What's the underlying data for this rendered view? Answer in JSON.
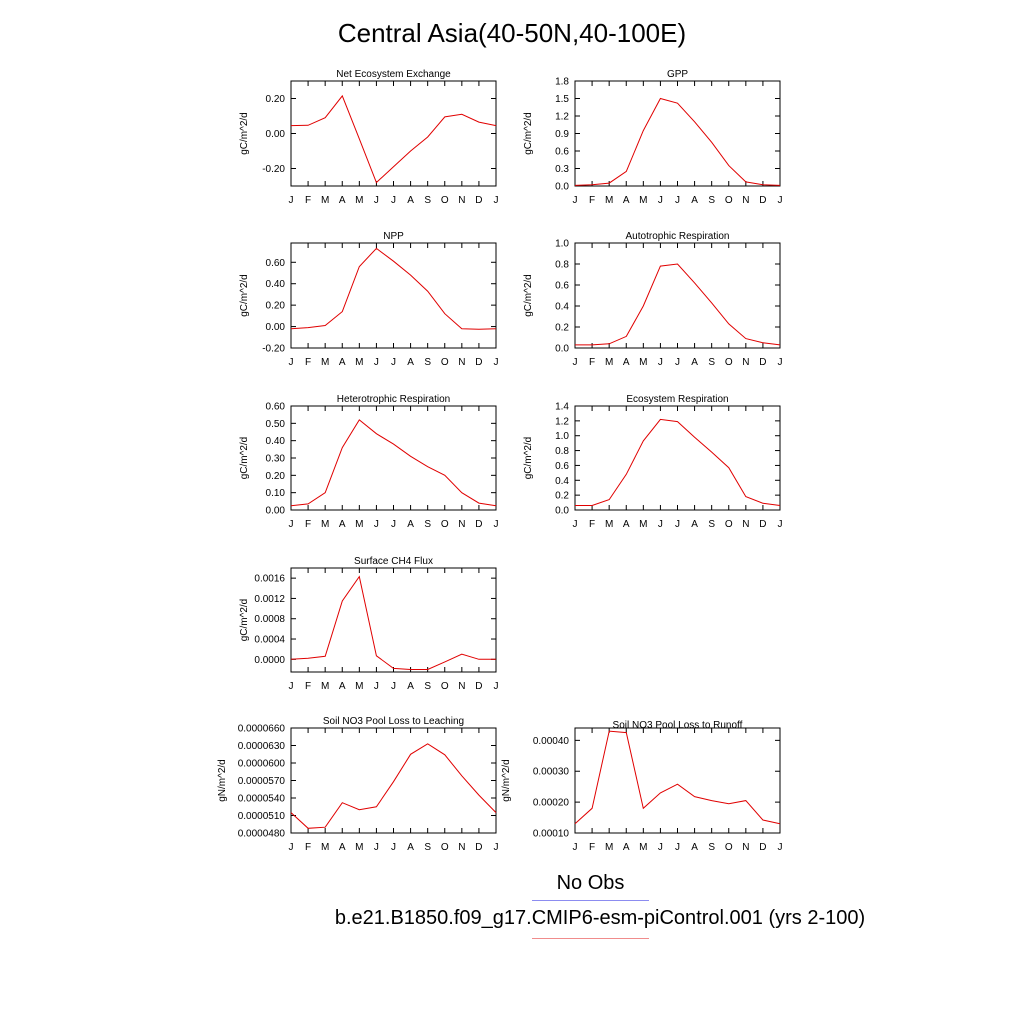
{
  "title": "Central Asia(40-50N,40-100E)",
  "legend": {
    "obs_label": "No Obs",
    "obs_color": "#8c8cf0",
    "model_label": "b.e21.B1850.f09_g17.CMIP6-esm-piControl.001 (yrs 2-100)",
    "model_color": "#e00000"
  },
  "chart_data": [
    {
      "type": "line",
      "title": "Net Ecosystem Exchange",
      "ylabel": "gC/m^2/d",
      "categories": [
        "J",
        "F",
        "M",
        "A",
        "M",
        "J",
        "J",
        "A",
        "S",
        "O",
        "N",
        "D",
        "J"
      ],
      "yticks": [
        "-0.20",
        "0.00",
        "0.20"
      ],
      "ytick_values": [
        -0.2,
        0.0,
        0.2
      ],
      "ylim": [
        -0.3,
        0.3
      ],
      "series": [
        {
          "values": [
            0.045,
            0.047,
            0.09,
            0.215,
            -0.03,
            -0.28,
            -0.19,
            -0.1,
            -0.02,
            0.095,
            0.11,
            0.065,
            0.045
          ]
        }
      ]
    },
    {
      "type": "line",
      "title": "GPP",
      "ylabel": "gC/m^2/d",
      "categories": [
        "J",
        "F",
        "M",
        "A",
        "M",
        "J",
        "J",
        "A",
        "S",
        "O",
        "N",
        "D",
        "J"
      ],
      "yticks": [
        "0.0",
        "0.3",
        "0.6",
        "0.9",
        "1.2",
        "1.5",
        "1.8"
      ],
      "ytick_values": [
        0,
        0.3,
        0.6,
        0.9,
        1.2,
        1.5,
        1.8
      ],
      "ylim": [
        0,
        1.8
      ],
      "series": [
        {
          "values": [
            0.01,
            0.02,
            0.05,
            0.25,
            0.95,
            1.5,
            1.42,
            1.1,
            0.75,
            0.35,
            0.07,
            0.02,
            0.01
          ]
        }
      ]
    },
    {
      "type": "line",
      "title": "NPP",
      "ylabel": "gC/m^2/d",
      "categories": [
        "J",
        "F",
        "M",
        "A",
        "M",
        "J",
        "J",
        "A",
        "S",
        "O",
        "N",
        "D",
        "J"
      ],
      "yticks": [
        "-0.20",
        "0.00",
        "0.20",
        "0.40",
        "0.60"
      ],
      "ytick_values": [
        -0.2,
        0,
        0.2,
        0.4,
        0.6
      ],
      "ylim": [
        -0.2,
        0.78
      ],
      "series": [
        {
          "values": [
            -0.02,
            -0.01,
            0.01,
            0.14,
            0.56,
            0.73,
            0.61,
            0.48,
            0.33,
            0.12,
            -0.02,
            -0.025,
            -0.02
          ]
        }
      ]
    },
    {
      "type": "line",
      "title": "Autotrophic Respiration",
      "ylabel": "gC/m^2/d",
      "categories": [
        "J",
        "F",
        "M",
        "A",
        "M",
        "J",
        "J",
        "A",
        "S",
        "O",
        "N",
        "D",
        "J"
      ],
      "yticks": [
        "0.0",
        "0.2",
        "0.4",
        "0.6",
        "0.8",
        "1.0"
      ],
      "ytick_values": [
        0,
        0.2,
        0.4,
        0.6,
        0.8,
        1.0
      ],
      "ylim": [
        0,
        1.0
      ],
      "series": [
        {
          "values": [
            0.03,
            0.03,
            0.04,
            0.11,
            0.4,
            0.78,
            0.8,
            0.62,
            0.43,
            0.23,
            0.09,
            0.05,
            0.03
          ]
        }
      ]
    },
    {
      "type": "line",
      "title": "Heterotrophic Respiration",
      "ylabel": "gC/m^2/d",
      "categories": [
        "J",
        "F",
        "M",
        "A",
        "M",
        "J",
        "J",
        "A",
        "S",
        "O",
        "N",
        "D",
        "J"
      ],
      "yticks": [
        "0.00",
        "0.10",
        "0.20",
        "0.30",
        "0.40",
        "0.50",
        "0.60"
      ],
      "ytick_values": [
        0,
        0.1,
        0.2,
        0.3,
        0.4,
        0.5,
        0.6
      ],
      "ylim": [
        0,
        0.6
      ],
      "series": [
        {
          "values": [
            0.025,
            0.035,
            0.1,
            0.36,
            0.52,
            0.44,
            0.38,
            0.31,
            0.25,
            0.2,
            0.1,
            0.04,
            0.025
          ]
        }
      ]
    },
    {
      "type": "line",
      "title": "Ecosystem Respiration",
      "ylabel": "gC/m^2/d",
      "categories": [
        "J",
        "F",
        "M",
        "A",
        "M",
        "J",
        "J",
        "A",
        "S",
        "O",
        "N",
        "D",
        "J"
      ],
      "yticks": [
        "0.0",
        "0.2",
        "0.4",
        "0.6",
        "0.8",
        "1.0",
        "1.2",
        "1.4"
      ],
      "ytick_values": [
        0,
        0.2,
        0.4,
        0.6,
        0.8,
        1.0,
        1.2,
        1.4
      ],
      "ylim": [
        0,
        1.4
      ],
      "series": [
        {
          "values": [
            0.06,
            0.06,
            0.14,
            0.48,
            0.93,
            1.22,
            1.19,
            0.98,
            0.78,
            0.57,
            0.18,
            0.09,
            0.06
          ]
        }
      ]
    },
    {
      "type": "line",
      "title": "Surface CH4 Flux",
      "ylabel": "gC/m^2/d",
      "categories": [
        "J",
        "F",
        "M",
        "A",
        "M",
        "J",
        "J",
        "A",
        "S",
        "O",
        "N",
        "D",
        "J"
      ],
      "yticks": [
        "0.0000",
        "0.0004",
        "0.0008",
        "0.0012",
        "0.0016"
      ],
      "ytick_values": [
        0,
        0.0004,
        0.0008,
        0.0012,
        0.0016
      ],
      "ylim": [
        -0.00025,
        0.0018
      ],
      "series": [
        {
          "values": [
            0.0,
            2e-05,
            6e-05,
            0.00115,
            0.00163,
            7e-05,
            -0.00018,
            -0.0002,
            -0.0002,
            -5e-05,
            0.0001,
            0.0,
            0.0
          ]
        }
      ]
    },
    {
      "type": "line",
      "title": "Soil NO3 Pool Loss to Leaching",
      "ylabel": "gN/m^2/d",
      "categories": [
        "J",
        "F",
        "M",
        "A",
        "M",
        "J",
        "J",
        "A",
        "S",
        "O",
        "N",
        "D",
        "J"
      ],
      "yticks": [
        "0.0000480",
        "0.0000510",
        "0.0000540",
        "0.0000570",
        "0.0000600",
        "0.0000630",
        "0.0000660"
      ],
      "ytick_values": [
        4.8e-05,
        5.1e-05,
        5.4e-05,
        5.7e-05,
        6e-05,
        6.3e-05,
        6.6e-05
      ],
      "ylim": [
        4.8e-05,
        6.6e-05
      ],
      "series": [
        {
          "values": [
            5.15e-05,
            4.88e-05,
            4.9e-05,
            5.32e-05,
            5.2e-05,
            5.25e-05,
            5.68e-05,
            6.15e-05,
            6.33e-05,
            6.14e-05,
            5.78e-05,
            5.45e-05,
            5.15e-05
          ]
        }
      ]
    },
    {
      "type": "line",
      "title": "Soil NO3 Pool Loss to Runoff",
      "ylabel": "gN/m^2/d",
      "categories": [
        "J",
        "F",
        "M",
        "A",
        "M",
        "J",
        "J",
        "A",
        "S",
        "O",
        "N",
        "D",
        "J"
      ],
      "yticks": [
        "0.00010",
        "0.00020",
        "0.00030",
        "0.00040"
      ],
      "ytick_values": [
        0.0001,
        0.0002,
        0.0003,
        0.0004
      ],
      "ylim": [
        0.0001,
        0.00044
      ],
      "series": [
        {
          "values": [
            0.00013,
            0.00018,
            0.00043,
            0.000425,
            0.00018,
            0.00023,
            0.000258,
            0.000218,
            0.000205,
            0.000195,
            0.000205,
            0.000142,
            0.00013
          ]
        }
      ]
    }
  ]
}
